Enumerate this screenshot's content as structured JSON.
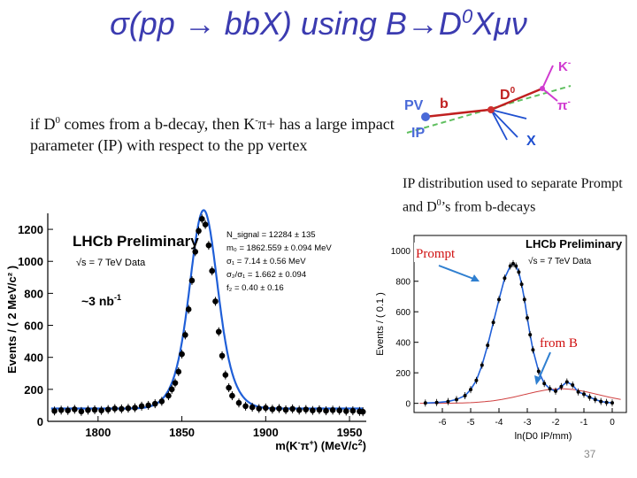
{
  "slide": {
    "title_main": "σ(pp → bbX) using B→D",
    "title_sup": "0",
    "title_end": "Xμν",
    "desc_part1": "if D",
    "desc_sup1": "0",
    "desc_part2": " comes from a b-decay, then K",
    "desc_sup2": "-",
    "desc_part3": "π+ has a large impact parameter (IP) with respect to the pp vertex",
    "ip_note_part1": "IP distribution used to separate Prompt and D",
    "ip_note_sup": "0",
    "ip_note_part2": "’s from b-decays",
    "slide_number": "37"
  },
  "diagram": {
    "pv": "PV",
    "ip": "IP",
    "b": "b",
    "d0": "D",
    "d0_sup": "0",
    "kminus": "K",
    "kminus_sup": "-",
    "piminus": "π",
    "piminus_sup": "-",
    "x": "X"
  },
  "colors": {
    "title": "#3b3bb0",
    "fit_blue": "#1f5fd8",
    "annotation_red": "#d01010",
    "arrow_blue": "#2f7fd0"
  },
  "chart_data": [
    {
      "type": "line",
      "title": "LHCb Preliminary",
      "subtitle": "√s = 7 TeV Data",
      "luminosity": "~3 nb",
      "luminosity_sup": "-1",
      "xlabel": "m(K",
      "xlabel_sup1": "-",
      "xlabel_mid": "π",
      "xlabel_sup2": "+",
      "xlabel_end": ") (MeV/c",
      "xlabel_sup3": "2",
      "xlabel_close": ")",
      "ylabel": "Events / ( 2 MeV/c² )",
      "xlim": [
        1770,
        1960
      ],
      "ylim": [
        0,
        1300
      ],
      "xticks": [
        "1800",
        "1850",
        "1900",
        "1950"
      ],
      "yticks": [
        "0",
        "200",
        "400",
        "600",
        "800",
        "1000",
        "1200"
      ],
      "fit_params": [
        "N_signal = 12284 ± 135",
        "m₀ = 1862.559 ± 0.094 MeV",
        "σ₁ = 7.14 ± 0.56 MeV",
        "σ₂/σ₁ = 1.662 ± 0.094",
        "f₂ = 0.40 ± 0.16"
      ],
      "model": {
        "background": 80,
        "amplitude": 1240,
        "mean": 1863,
        "sigma1": 7.14,
        "sigma2": 11.9,
        "f2": 0.4
      },
      "x": [
        1774,
        1778,
        1782,
        1786,
        1790,
        1794,
        1798,
        1802,
        1806,
        1810,
        1814,
        1818,
        1822,
        1826,
        1830,
        1834,
        1838,
        1842,
        1844,
        1846,
        1848,
        1850,
        1852,
        1854,
        1856,
        1858,
        1860,
        1862,
        1864,
        1866,
        1868,
        1870,
        1872,
        1874,
        1876,
        1878,
        1880,
        1884,
        1888,
        1892,
        1896,
        1900,
        1904,
        1908,
        1912,
        1916,
        1920,
        1924,
        1928,
        1932,
        1936,
        1940,
        1944,
        1948,
        1952,
        1956,
        1958
      ],
      "y": [
        65,
        70,
        68,
        75,
        62,
        70,
        72,
        68,
        74,
        80,
        78,
        82,
        85,
        95,
        100,
        110,
        125,
        160,
        200,
        240,
        310,
        420,
        540,
        700,
        880,
        1060,
        1190,
        1265,
        1230,
        1100,
        940,
        750,
        560,
        410,
        290,
        210,
        160,
        115,
        95,
        88,
        80,
        84,
        76,
        80,
        72,
        78,
        70,
        74,
        68,
        72,
        66,
        70,
        68,
        64,
        66,
        62,
        60
      ]
    },
    {
      "type": "line",
      "title": "LHCb Preliminary",
      "subtitle": "√s = 7 TeV Data",
      "xlabel": "ln(D0 IP/mm)",
      "ylabel": "Events / ( 0.1 )",
      "xlim": [
        -7,
        0.5
      ],
      "ylim": [
        -60,
        1100
      ],
      "xticks": [
        "-6",
        "-5",
        "-4",
        "-3",
        "-2",
        "-1",
        "0"
      ],
      "yticks": [
        "0",
        "200",
        "400",
        "600",
        "800",
        "1000"
      ],
      "prompt_label": "Prompt",
      "fromb_label": "from B",
      "x": [
        -6.6,
        -6.2,
        -5.8,
        -5.5,
        -5.2,
        -5.0,
        -4.8,
        -4.6,
        -4.4,
        -4.2,
        -4.0,
        -3.8,
        -3.6,
        -3.5,
        -3.4,
        -3.3,
        -3.2,
        -3.1,
        -3.0,
        -2.9,
        -2.8,
        -2.6,
        -2.4,
        -2.2,
        -2.0,
        -1.8,
        -1.6,
        -1.4,
        -1.2,
        -1.0,
        -0.8,
        -0.6,
        -0.4,
        -0.2,
        0.0
      ],
      "y": [
        2,
        5,
        12,
        25,
        50,
        90,
        150,
        250,
        380,
        530,
        680,
        820,
        900,
        915,
        900,
        860,
        780,
        680,
        560,
        450,
        350,
        210,
        130,
        95,
        80,
        110,
        140,
        120,
        75,
        60,
        40,
        25,
        12,
        6,
        3
      ]
    }
  ]
}
